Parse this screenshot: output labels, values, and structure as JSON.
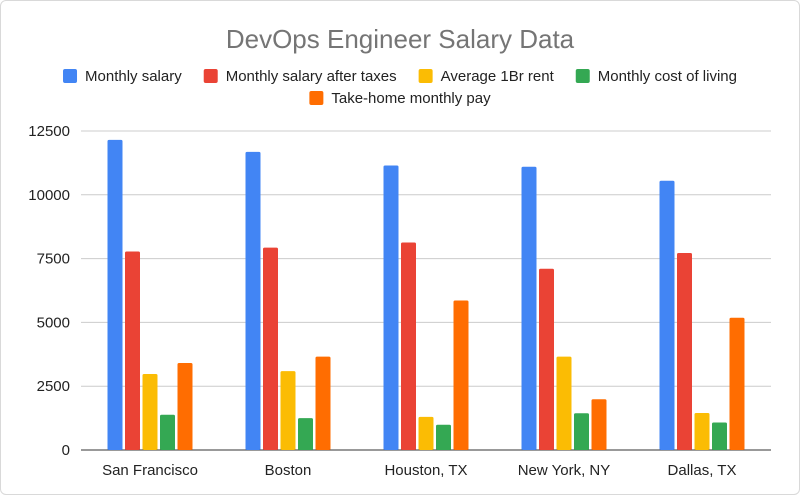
{
  "chart_data": {
    "type": "bar",
    "title": "DevOps Engineer Salary Data",
    "xlabel": "",
    "ylabel": "",
    "ylim": [
      0,
      12500
    ],
    "yticks": [
      0,
      2500,
      5000,
      7500,
      10000,
      12500
    ],
    "grid": true,
    "legend_position": "top",
    "categories": [
      "San Francisco",
      "Boston",
      "Houston, TX",
      "New York, NY",
      "Dallas, TX"
    ],
    "series": [
      {
        "name": "Monthly salary",
        "color": "#4285F4",
        "values": [
          12150,
          11680,
          11150,
          11100,
          10550
        ]
      },
      {
        "name": "Monthly salary after taxes",
        "color": "#EA4335",
        "values": [
          7780,
          7930,
          8130,
          7100,
          7720
        ]
      },
      {
        "name": "Average 1Br rent",
        "color": "#FBBC04",
        "values": [
          2980,
          3090,
          1300,
          3660,
          1450
        ]
      },
      {
        "name": "Monthly cost of living",
        "color": "#34A853",
        "values": [
          1380,
          1250,
          990,
          1440,
          1080
        ]
      },
      {
        "name": "Take-home monthly pay",
        "color": "#FF6D01",
        "values": [
          3410,
          3660,
          5860,
          1990,
          5180
        ]
      }
    ]
  }
}
